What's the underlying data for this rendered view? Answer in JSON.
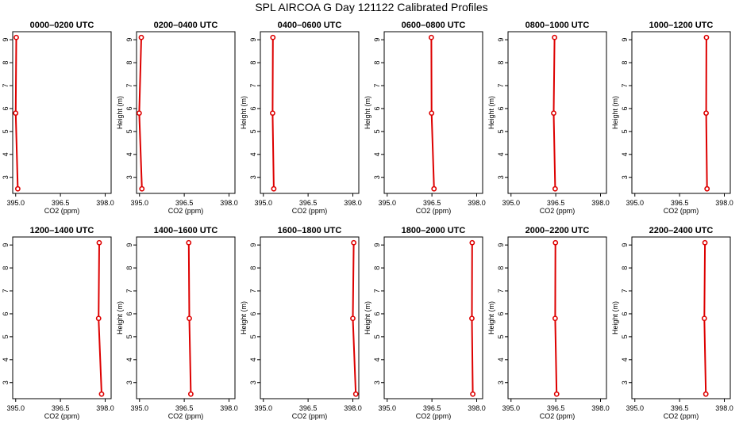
{
  "title": "SPL AIRCOA G  Day 121122  Calibrated Profiles",
  "chart_data": {
    "type": "line",
    "xlabel": "CO2 (ppm)",
    "ylabel": "Height (m)",
    "xlim": [
      394.9,
      398.2
    ],
    "ylim": [
      2.3,
      9.35
    ],
    "xticks": [
      395.0,
      396.5,
      398.0
    ],
    "xtick_labels": [
      "395.0",
      "396.5",
      "398.0"
    ],
    "yticks": [
      3,
      4,
      5,
      6,
      7,
      8,
      9
    ],
    "heights": [
      9.1,
      5.8,
      2.5
    ],
    "series_color": "#dd0000",
    "panels": [
      {
        "title": "0000–0200 UTC",
        "co2": [
          395.02,
          395.0,
          395.07
        ]
      },
      {
        "title": "0200–0400 UTC",
        "co2": [
          395.06,
          394.99,
          395.08
        ]
      },
      {
        "title": "0400–0600 UTC",
        "co2": [
          395.32,
          395.31,
          395.35
        ]
      },
      {
        "title": "0600–0800 UTC",
        "co2": [
          396.48,
          396.49,
          396.57
        ]
      },
      {
        "title": "0800–1000 UTC",
        "co2": [
          396.46,
          396.43,
          396.48
        ]
      },
      {
        "title": "1000–1200 UTC",
        "co2": [
          397.4,
          397.39,
          397.42
        ]
      },
      {
        "title": "1200–1400 UTC",
        "co2": [
          397.8,
          397.78,
          397.88
        ]
      },
      {
        "title": "1400–1600 UTC",
        "co2": [
          396.65,
          396.67,
          396.72
        ]
      },
      {
        "title": "1600–1800 UTC",
        "co2": [
          398.03,
          398.0,
          398.1
        ]
      },
      {
        "title": "1800–2000 UTC",
        "co2": [
          397.85,
          397.84,
          397.87
        ]
      },
      {
        "title": "2000–2200 UTC",
        "co2": [
          396.49,
          396.48,
          396.53
        ]
      },
      {
        "title": "2200–2400 UTC",
        "co2": [
          397.35,
          397.33,
          397.38
        ]
      }
    ]
  }
}
